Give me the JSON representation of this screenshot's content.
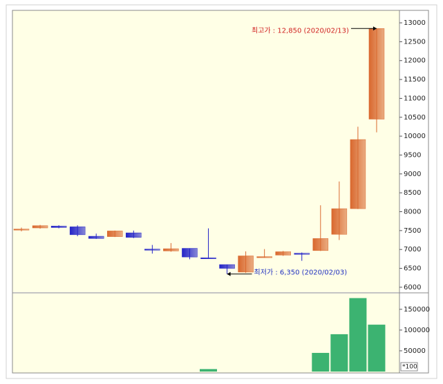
{
  "chart_data": [
    {
      "type": "candlestick",
      "open": [
        7520,
        7570,
        7620,
        7600,
        7350,
        7340,
        7440,
        7010,
        6960,
        7030,
        6780,
        6600,
        6400,
        6790,
        6850,
        6900,
        6970,
        7400,
        8080,
        10450
      ],
      "high": [
        7580,
        7650,
        7640,
        7640,
        7420,
        7500,
        7500,
        7120,
        7170,
        7030,
        7560,
        6600,
        6950,
        7010,
        6960,
        6920,
        8170,
        8800,
        10250,
        12850
      ],
      "low": [
        7480,
        7550,
        7560,
        7350,
        7280,
        7330,
        7300,
        6890,
        6940,
        6740,
        6760,
        6350,
        6380,
        6780,
        6830,
        6700,
        6960,
        7250,
        8070,
        10100
      ],
      "close": [
        7540,
        7630,
        7580,
        7390,
        7290,
        7490,
        7320,
        6980,
        7020,
        6800,
        6770,
        6500,
        6830,
        6810,
        6940,
        6870,
        7290,
        8080,
        9910,
        12850
      ],
      "up_color": "#d9682e",
      "down_color": "#2424c8",
      "ylim": [
        5870,
        13330
      ],
      "yticks": [
        6000,
        6500,
        7000,
        7500,
        8000,
        8500,
        9000,
        9500,
        10000,
        10500,
        11000,
        11500,
        12000,
        12500,
        13000
      ],
      "annotations": {
        "high": {
          "text": "최고가 : 12,850 (2020/02/13)",
          "color": "#d02020"
        },
        "low": {
          "text": "최저가 : 6,350 (2020/02/03)",
          "color": "#2030c0"
        }
      }
    },
    {
      "type": "bar",
      "values": [
        0,
        0,
        0,
        0,
        0,
        0,
        0,
        0,
        0,
        0,
        6000,
        0,
        0,
        0,
        0,
        0,
        45000,
        90000,
        177000,
        113000
      ],
      "color": "#3cb371",
      "ylim": [
        0,
        188000
      ],
      "yticks": [
        50000,
        100000,
        150000
      ],
      "unit_label": "*100"
    }
  ]
}
